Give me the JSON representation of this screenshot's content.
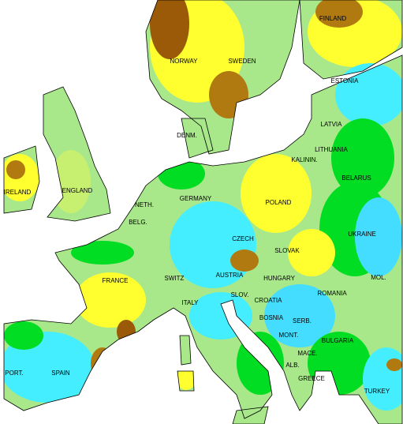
{
  "countries": [
    "FINLAND",
    "NORWAY",
    "SWEDEN",
    "ESTONIA",
    "LATVIA",
    "LITHUANIA",
    "KALININ.",
    "DENM.",
    "IRELAND",
    "ENGLAND",
    "NETH.",
    "BELG.",
    "GERMANY",
    "POLAND",
    "BELARUS",
    "UKRAINE",
    "CZECH",
    "SLOVAK",
    "AUSTRIA",
    "SWITZ",
    "FRANCE",
    "HUNGARY",
    "MOL.",
    "ROMANIA",
    "SLOV.",
    "CROATIA",
    "ITALY",
    "BOSNIA",
    "SERB.",
    "MONT.",
    "BULGARIA",
    "MACE.",
    "ALB.",
    "GREECE",
    "TURKEY",
    "PORT.",
    "SPAIN"
  ]
}
